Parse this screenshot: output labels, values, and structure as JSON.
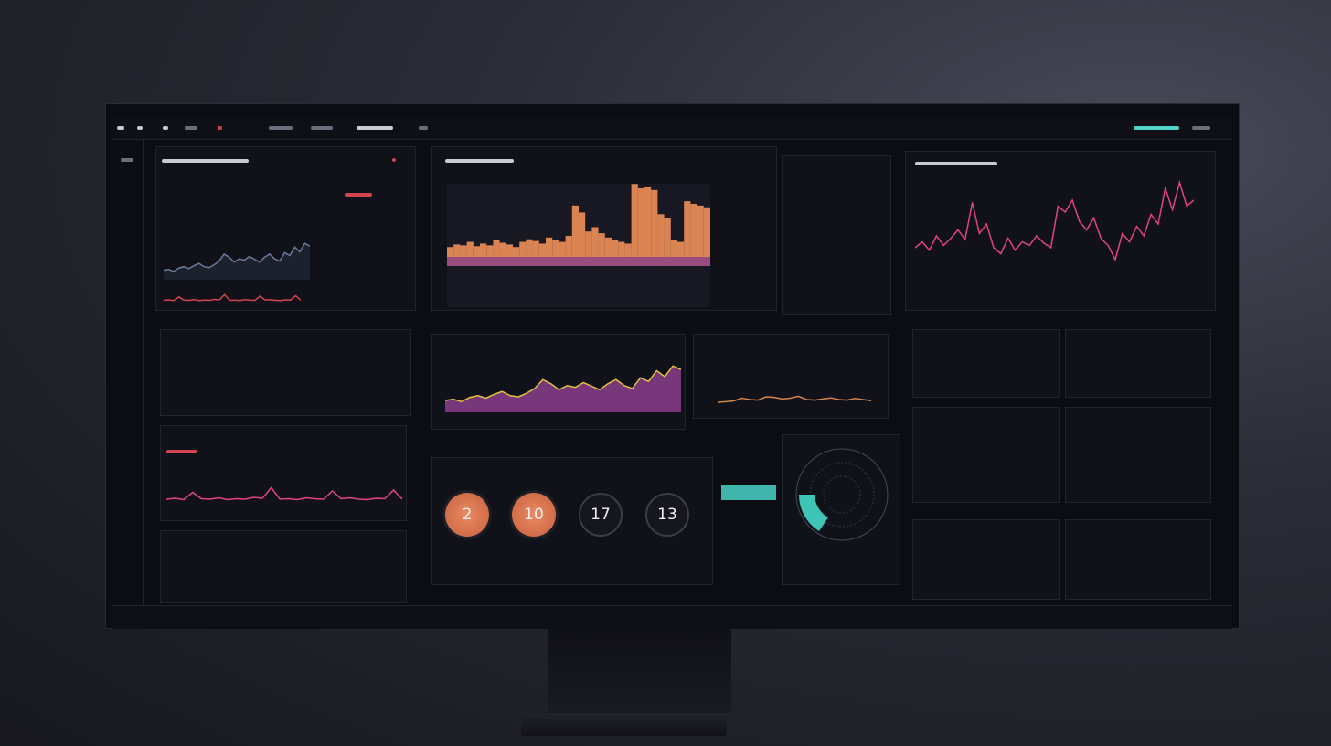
{
  "gauges": [
    {
      "value": "2",
      "color": "#e07a52"
    },
    {
      "value": "10",
      "color": "#e07a52"
    },
    {
      "value": "17",
      "color": "#1a1b24"
    },
    {
      "value": "13",
      "color": "#1a1b24"
    }
  ],
  "colors": {
    "accent_orange": "#f0905a",
    "accent_pink": "#e0457a",
    "accent_teal": "#4fd1c5",
    "accent_purple": "#8a3e8c",
    "alert_red": "#d0454f"
  },
  "charts": {
    "bars": [
      22,
      25,
      24,
      28,
      23,
      26,
      24,
      30,
      27,
      25,
      22,
      28,
      31,
      29,
      26,
      33,
      30,
      28,
      35,
      70,
      62,
      40,
      45,
      38,
      33,
      30,
      28,
      26,
      95,
      90,
      92,
      88,
      60,
      55,
      30,
      28,
      75,
      72,
      70,
      68
    ],
    "pink_right": [
      40,
      45,
      38,
      50,
      42,
      48,
      55,
      47,
      78,
      52,
      60,
      40,
      35,
      48,
      38,
      45,
      42,
      50,
      44,
      40,
      75,
      70,
      80,
      62,
      55,
      65,
      48,
      42,
      30,
      52,
      45,
      58,
      50,
      68,
      60,
      90,
      72,
      95,
      75,
      80
    ],
    "area": [
      20,
      22,
      18,
      25,
      28,
      24,
      30,
      35,
      28,
      26,
      32,
      40,
      55,
      48,
      38,
      45,
      42,
      50,
      44,
      38,
      48,
      55,
      45,
      40,
      58,
      52,
      70,
      60,
      78,
      72
    ],
    "teal_small": [
      20,
      22,
      25,
      35,
      30,
      28,
      40,
      38,
      32,
      35,
      42,
      30,
      28,
      32,
      36,
      30,
      28,
      34,
      30,
      26
    ],
    "pink_left": [
      30,
      32,
      29,
      45,
      31,
      30,
      33,
      29,
      31,
      30,
      34,
      32,
      55,
      30,
      31,
      29,
      33,
      31,
      30,
      48,
      31,
      33,
      30,
      29,
      32,
      31,
      50,
      30
    ]
  }
}
